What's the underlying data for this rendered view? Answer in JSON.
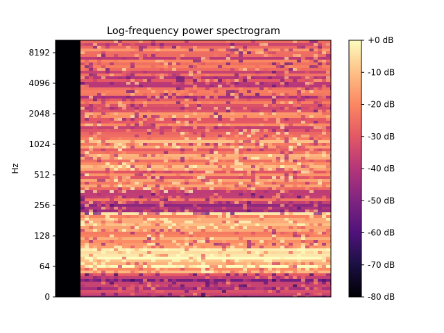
{
  "chart_data": {
    "type": "heatmap",
    "title": "Log-frequency power spectrogram",
    "xlabel": "",
    "ylabel": "Hz",
    "y_scale": "log2",
    "y_ticks": [
      {
        "label": "0",
        "value": 0
      },
      {
        "label": "64",
        "value": 64
      },
      {
        "label": "128",
        "value": 128
      },
      {
        "label": "256",
        "value": 256
      },
      {
        "label": "512",
        "value": 512
      },
      {
        "label": "1024",
        "value": 1024
      },
      {
        "label": "2048",
        "value": 2048
      },
      {
        "label": "4096",
        "value": 4096
      },
      {
        "label": "8192",
        "value": 8192
      }
    ],
    "colorbar": {
      "colormap": "magma",
      "range_db": [
        -80,
        0
      ],
      "ticks": [
        "+0 dB",
        "-10 dB",
        "-20 dB",
        "-30 dB",
        "-40 dB",
        "-50 dB",
        "-60 dB",
        "-70 dB",
        "-80 dB"
      ]
    },
    "silent_leading_fraction": 0.09,
    "bands": [
      {
        "freq_hz": 8192,
        "level_db": -30
      },
      {
        "freq_hz": 4096,
        "level_db": -32
      },
      {
        "freq_hz": 2048,
        "level_db": -28
      },
      {
        "freq_hz": 1024,
        "level_db": -22
      },
      {
        "freq_hz": 512,
        "level_db": -20
      },
      {
        "freq_hz": 256,
        "level_db": -35
      },
      {
        "freq_hz": 180,
        "level_db": -8
      },
      {
        "freq_hz": 128,
        "level_db": -22
      },
      {
        "freq_hz": 80,
        "level_db": -4
      },
      {
        "freq_hz": 64,
        "level_db": -12
      },
      {
        "freq_hz": 40,
        "level_db": -40
      }
    ]
  }
}
